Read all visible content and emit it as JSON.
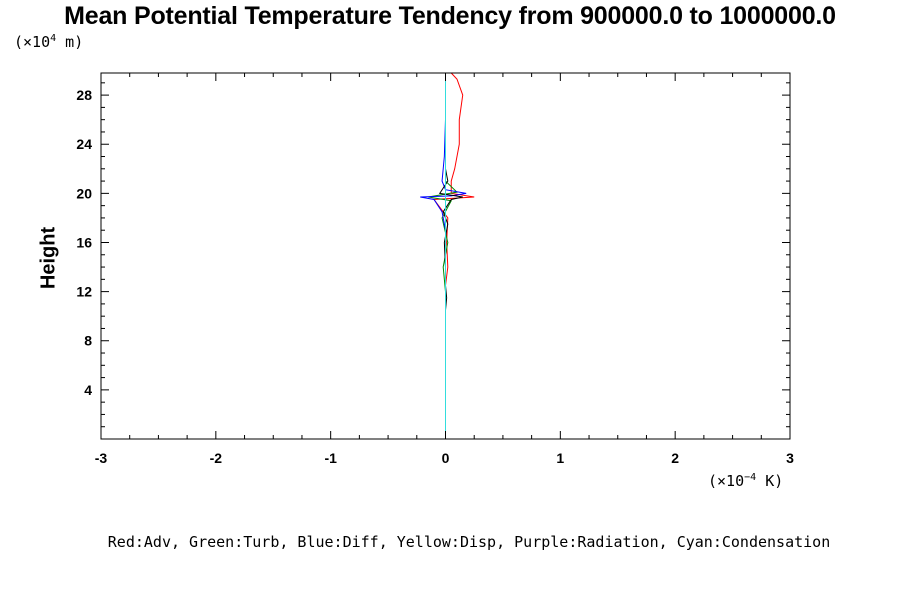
{
  "chart_data": {
    "type": "line",
    "title": "Mean Potential Temperature Tendency from 900000.0 to 1000000.0",
    "ylabel": "Height",
    "y_scale_label": "(×10",
    "y_scale_exp": "4",
    "y_scale_unit": " m)",
    "x_scale_label": "(×10",
    "x_scale_exp": "−4",
    "x_scale_unit": " K)",
    "xlim": [
      -3,
      3
    ],
    "ylim": [
      0,
      29.8
    ],
    "x_ticks": [
      -3,
      -2,
      -1,
      0,
      1,
      2,
      3
    ],
    "x_tick_labels": [
      "-3",
      "-2",
      "-1",
      "0",
      "1",
      "2",
      "3"
    ],
    "y_ticks": [
      4,
      8,
      12,
      16,
      20,
      24,
      28
    ],
    "y_tick_labels": [
      "4",
      "8",
      "12",
      "16",
      "20",
      "24",
      "28"
    ],
    "legend_text": "Red:Adv, Green:Turb, Blue:Diff, Yellow:Disp, Purple:Radiation, Cyan:Condensation",
    "series": [
      {
        "color": "#ff0000",
        "points": [
          [
            0,
            0
          ],
          [
            0,
            12.5
          ],
          [
            0.02,
            14
          ],
          [
            0.01,
            16
          ],
          [
            0.02,
            18
          ],
          [
            -0.1,
            19.5
          ],
          [
            0.25,
            19.7
          ],
          [
            0.05,
            20
          ],
          [
            0.05,
            21
          ],
          [
            0.08,
            22
          ],
          [
            0.12,
            24
          ],
          [
            0.12,
            26
          ],
          [
            0.15,
            28
          ],
          [
            0.1,
            29.3
          ],
          [
            0.05,
            29.8
          ]
        ]
      },
      {
        "color": "#008800",
        "points": [
          [
            0,
            0
          ],
          [
            0,
            12
          ],
          [
            -0.02,
            14
          ],
          [
            0.02,
            16
          ],
          [
            -0.03,
            18
          ],
          [
            0.05,
            19.4
          ],
          [
            -0.15,
            19.7
          ],
          [
            0.1,
            20.1
          ],
          [
            0,
            21
          ],
          [
            0,
            29.8
          ]
        ]
      },
      {
        "color": "#0000ff",
        "points": [
          [
            0,
            0
          ],
          [
            0,
            17
          ],
          [
            -0.03,
            18.5
          ],
          [
            -0.1,
            19.5
          ],
          [
            -0.22,
            19.7
          ],
          [
            0.05,
            19.8
          ],
          [
            0.18,
            20
          ],
          [
            0,
            20.3
          ],
          [
            -0.03,
            21
          ],
          [
            -0.01,
            23
          ],
          [
            0,
            26
          ],
          [
            0,
            29.8
          ]
        ]
      },
      {
        "color": "#dddd00",
        "points": [
          [
            0,
            0
          ],
          [
            0,
            29.8
          ]
        ]
      },
      {
        "color": "#000000",
        "points": [
          [
            0,
            0
          ],
          [
            0,
            10.5
          ],
          [
            0.01,
            11.5
          ],
          [
            0,
            12.5
          ],
          [
            0,
            14
          ],
          [
            -0.01,
            16
          ],
          [
            0.02,
            17.5
          ],
          [
            -0.02,
            18.5
          ],
          [
            0.05,
            19.5
          ],
          [
            0.15,
            19.7
          ],
          [
            -0.05,
            20
          ],
          [
            0.02,
            21
          ],
          [
            0,
            22
          ],
          [
            0,
            29.8
          ]
        ]
      },
      {
        "color": "#ff00ff",
        "points": [
          [
            0,
            0
          ],
          [
            0,
            29.8
          ]
        ]
      },
      {
        "color": "#33dddd",
        "points": [
          [
            0,
            0
          ],
          [
            0,
            29.8
          ]
        ]
      }
    ]
  }
}
